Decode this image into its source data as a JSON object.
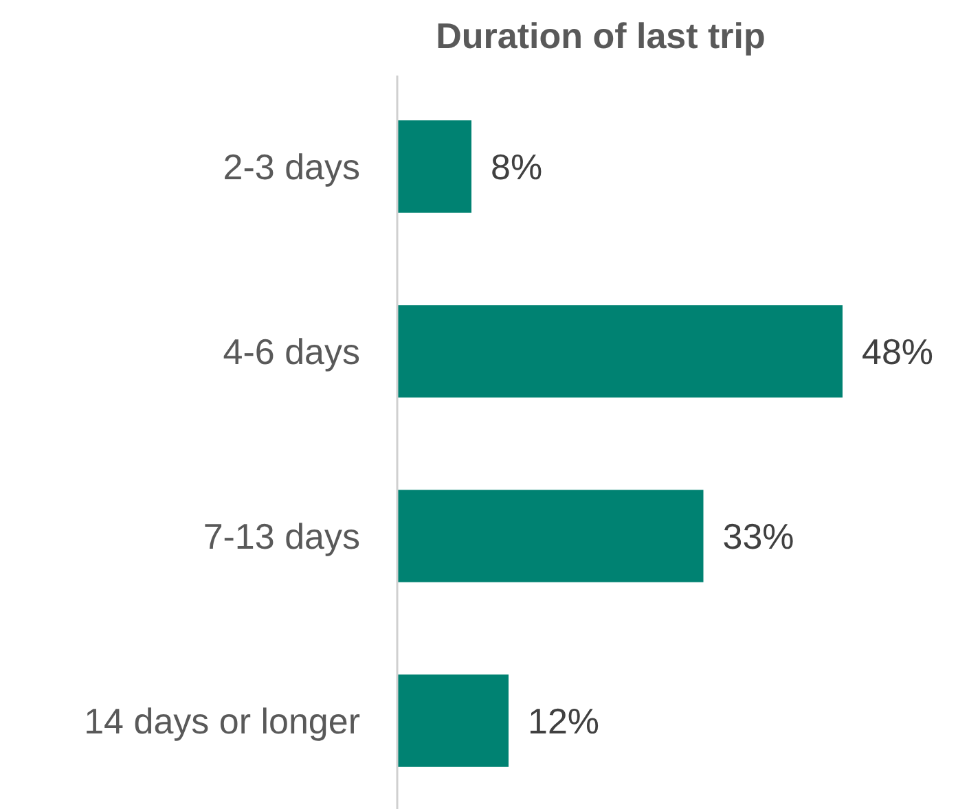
{
  "chart_data": {
    "type": "bar",
    "orientation": "horizontal",
    "title": "Duration of last trip",
    "categories": [
      "2-3 days",
      "4-6 days",
      "7-13 days",
      "14 days or longer"
    ],
    "values": [
      8,
      48,
      33,
      12
    ],
    "color": "#008272",
    "value_labels": [
      "8%",
      "48%",
      "33%",
      "12%"
    ]
  }
}
